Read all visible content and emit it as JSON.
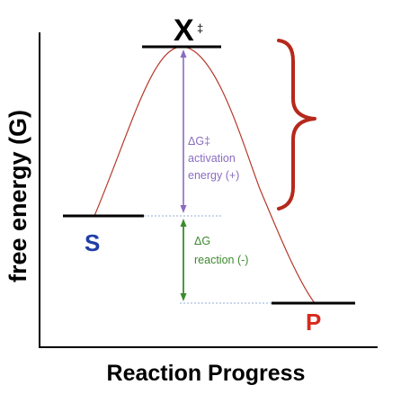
{
  "labels": {
    "y_axis": "free energy (G)",
    "x_axis": "Reaction Progress",
    "substrate": "S",
    "product": "P",
    "transition_state": "X",
    "transition_state_mark": "‡"
  },
  "activation": {
    "symbol": "ΔG‡",
    "line1": "activation",
    "line2": "energy (+)"
  },
  "reaction": {
    "symbol": "ΔG",
    "line1": "reaction (-)"
  },
  "colors": {
    "axis": "#000000",
    "curve": "#b5382a",
    "brace": "#b5291c",
    "activation": "#8a6cc0",
    "reaction": "#3d8a2e",
    "substrate": "#1f3ea8",
    "product": "#d62a1e",
    "dotted": "#a9bde0"
  }
}
